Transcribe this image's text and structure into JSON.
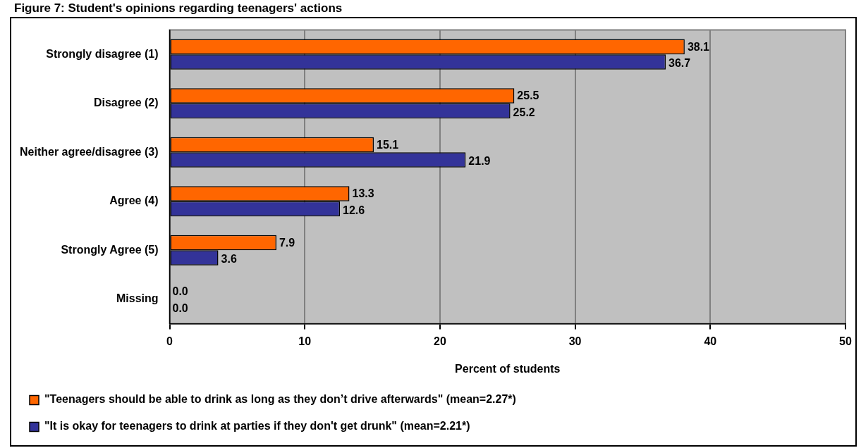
{
  "chart_data": {
    "type": "bar",
    "orientation": "horizontal",
    "title": "Figure 7: Student's opinions regarding teenagers' actions",
    "xlabel": "Percent of students",
    "categories": [
      "Strongly disagree (1)",
      "Disagree (2)",
      "Neither agree/disagree (3)",
      "Agree (4)",
      "Strongly Agree (5)",
      "Missing"
    ],
    "series": [
      {
        "name": "\"Teenagers should be able to drink as long as they don’t drive afterwards\" (mean=2.27*)",
        "color": "#ff6600",
        "values": [
          38.1,
          25.5,
          15.1,
          13.3,
          7.9,
          0.0
        ],
        "value_labels": [
          "38.1",
          "25.5",
          "15.1",
          "13.3",
          "7.9",
          "0.0"
        ]
      },
      {
        "name": "\"It is okay for teenagers to drink at parties if they don't get drunk\" (mean=2.21*)",
        "color": "#333399",
        "values": [
          36.7,
          25.2,
          21.9,
          12.6,
          3.6,
          0.0
        ],
        "value_labels": [
          "36.7",
          "25.2",
          "21.9",
          "12.6",
          "3.6",
          "0.0"
        ]
      }
    ],
    "xlim": [
      0,
      50
    ],
    "xticks": [
      0,
      10,
      20,
      30,
      40,
      50
    ],
    "grid": "x",
    "legend": "bottom"
  }
}
